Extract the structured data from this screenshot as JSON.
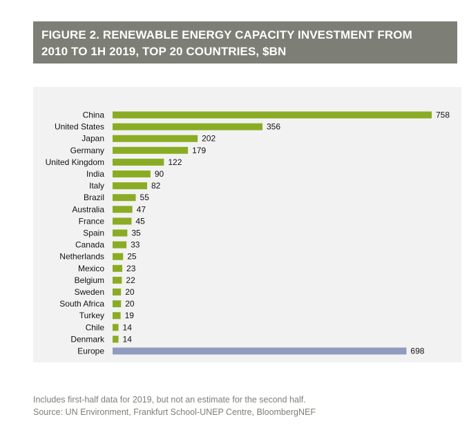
{
  "figure": {
    "title": "FIGURE 2. RENEWABLE ENERGY CAPACITY INVESTMENT FROM 2010 TO 1H 2019, TOP 20 COUNTRIES, $BN",
    "title_lines": [
      "FIGURE 2. RENEWABLE ENERGY CAPACITY INVESTMENT FROM",
      "2010 TO 1H 2019, TOP 20 COUNTRIES, $BN"
    ]
  },
  "footer": {
    "note": "Includes first-half data for 2019, but not an estimate for the second half.",
    "source": "Source: UN Environment, Frankfurt School-UNEP Centre, BloombergNEF"
  },
  "colors": {
    "title_band": "#7d7f76",
    "country_bar": "#8aac24",
    "europe_bar": "#8f9bbf",
    "panel": "#f2f2f2",
    "footer_text": "#7d7f76"
  },
  "chart_data": {
    "type": "bar",
    "orientation": "horizontal",
    "title": "FIGURE 2. RENEWABLE ENERGY CAPACITY INVESTMENT FROM 2010 TO 1H 2019, TOP 20 COUNTRIES, $BN",
    "xlabel": "",
    "ylabel": "",
    "xlim": [
      0,
      758
    ],
    "grid": false,
    "legend": "none",
    "categories": [
      "China",
      "United States",
      "Japan",
      "Germany",
      "United Kingdom",
      "India",
      "Italy",
      "Brazil",
      "Australia",
      "France",
      "Spain",
      "Canada",
      "Netherlands",
      "Mexico",
      "Belgium",
      "Sweden",
      "South Africa",
      "Turkey",
      "Chile",
      "Denmark",
      "Europe"
    ],
    "values": [
      758,
      356,
      202,
      179,
      122,
      90,
      82,
      55,
      47,
      45,
      35,
      33,
      25,
      23,
      22,
      20,
      20,
      19,
      14,
      14,
      698
    ],
    "data_labels": [
      "758",
      "356",
      "202",
      "179",
      "122",
      "90",
      "82",
      "55",
      "47",
      "45",
      "35",
      "33",
      "25",
      "23",
      "22",
      "20",
      "20",
      "19",
      "14",
      "14",
      "698"
    ],
    "highlight": {
      "category": "Europe",
      "color": "#8f9bbf"
    }
  }
}
